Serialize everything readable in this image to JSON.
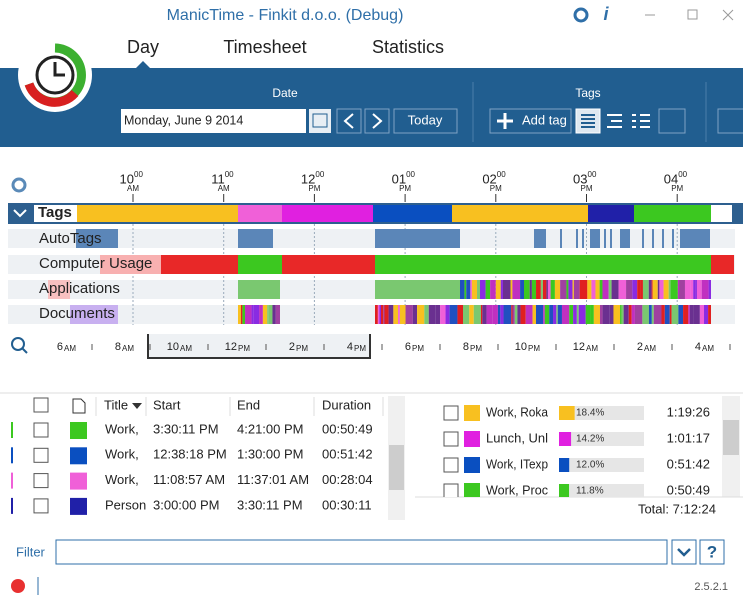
{
  "window": {
    "title": "ManicTime - Finkit d.o.o. (Debug)"
  },
  "tabs": [
    "Day",
    "Timesheet",
    "Statistics"
  ],
  "date_group": {
    "label": "Date",
    "date": "Monday, June 9 2014",
    "today": "Today"
  },
  "tags_group": {
    "label": "Tags",
    "add": "Add tag"
  },
  "timeline": {
    "hours": [
      {
        "h": "10",
        "m": "00",
        "p": "AM"
      },
      {
        "h": "11",
        "m": "00",
        "p": "AM"
      },
      {
        "h": "12",
        "m": "00",
        "p": "PM"
      },
      {
        "h": "01",
        "m": "00",
        "p": "PM"
      },
      {
        "h": "02",
        "m": "00",
        "p": "PM"
      },
      {
        "h": "03",
        "m": "00",
        "p": "PM"
      },
      {
        "h": "04",
        "m": "00",
        "p": "PM"
      }
    ],
    "rows": [
      "Tags",
      "AutoTags",
      "Computer Usage",
      "Applications",
      "Documents"
    ],
    "zoom": [
      {
        "n": "6",
        "s": "AM"
      },
      {
        "n": "8",
        "s": "AM"
      },
      {
        "n": "10",
        "s": "AM"
      },
      {
        "n": "12",
        "s": "PM"
      },
      {
        "n": "2",
        "s": "PM"
      },
      {
        "n": "4",
        "s": "PM"
      },
      {
        "n": "6",
        "s": "PM"
      },
      {
        "n": "8",
        "s": "PM"
      },
      {
        "n": "10",
        "s": "PM"
      },
      {
        "n": "12",
        "s": "AM"
      },
      {
        "n": "2",
        "s": "AM"
      },
      {
        "n": "4",
        "s": "AM"
      }
    ]
  },
  "table": {
    "headers": [
      "Title",
      "Start",
      "End",
      "Duration"
    ],
    "rows": [
      {
        "title": "Work,",
        "start": "3:30:11 PM",
        "end": "4:21:00 PM",
        "duration": "00:50:49",
        "color": "#3cc820"
      },
      {
        "title": "Work,",
        "start": "12:38:18 PM",
        "end": "1:30:00 PM",
        "duration": "00:51:42",
        "color": "#0a4fc0"
      },
      {
        "title": "Work,",
        "start": "11:08:57 AM",
        "end": "11:37:01 AM",
        "duration": "00:28:04",
        "color": "#f060d8"
      },
      {
        "title": "Person",
        "start": "3:00:00 PM",
        "end": "3:30:11 PM",
        "duration": "00:30:11",
        "color": "#2020a8"
      }
    ]
  },
  "summary": {
    "rows": [
      {
        "name": "Work, Roka",
        "value": 18.4,
        "value_label": "18.4%",
        "time": "1:19:26",
        "color": "#f8c020"
      },
      {
        "name": "Lunch, Unl",
        "value": 14.2,
        "value_label": "14.2%",
        "time": "1:01:17",
        "color": "#e020e0"
      },
      {
        "name": "Work, ITexp",
        "value": 12.0,
        "value_label": "12.0%",
        "time": "0:51:42",
        "color": "#0a4fc0"
      },
      {
        "name": "Work, Proc",
        "value": 11.8,
        "value_label": "11.8%",
        "time": "0:50:49",
        "color": "#3cc820"
      }
    ],
    "total": "Total: 7:12:24"
  },
  "filter": {
    "label": "Filter",
    "help": "?"
  },
  "status": {
    "version": "2.5.2.1"
  }
}
